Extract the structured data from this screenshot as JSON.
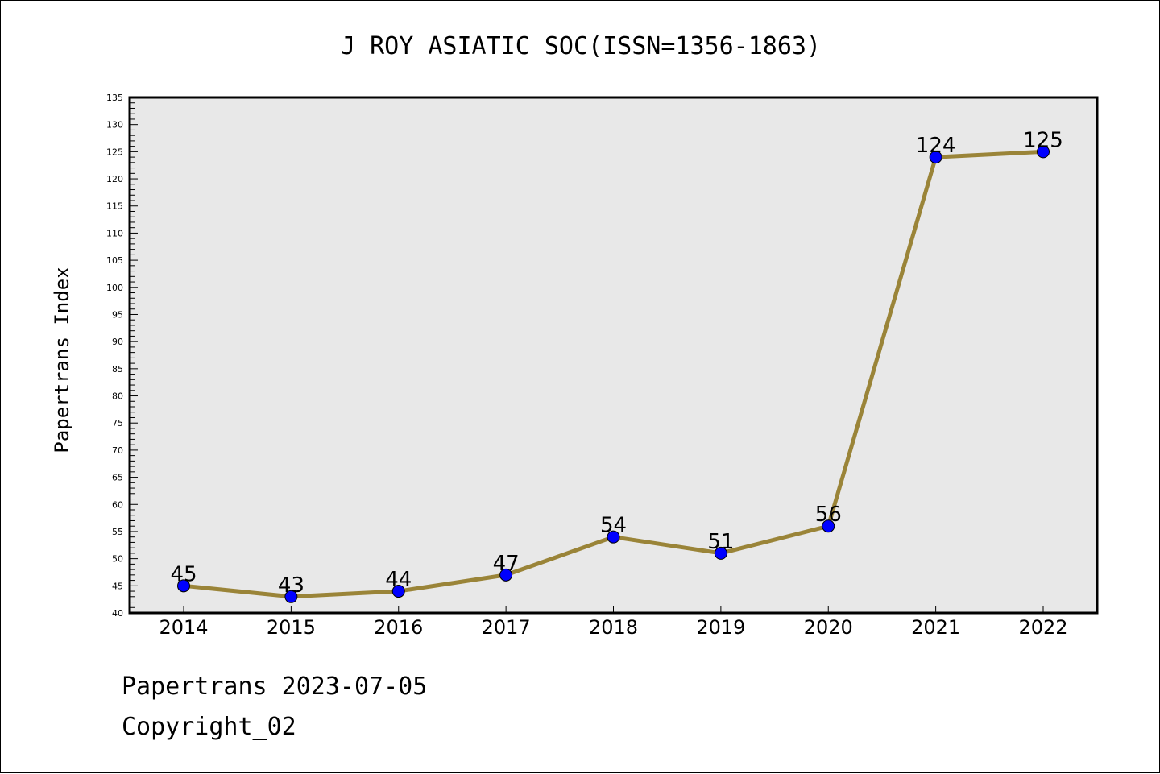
{
  "chart_data": {
    "type": "line",
    "title": "J ROY ASIATIC SOC(ISSN=1356-1863)",
    "xlabel": "",
    "ylabel": "Papertrans Index",
    "categories": [
      "2014",
      "2015",
      "2016",
      "2017",
      "2018",
      "2019",
      "2020",
      "2021",
      "2022"
    ],
    "series": [
      {
        "values": [
          45,
          43,
          44,
          47,
          54,
          51,
          56,
          124,
          125
        ]
      }
    ],
    "data_labels": [
      "45",
      "43",
      "44",
      "47",
      "54",
      "51",
      "56",
      "124",
      "125"
    ],
    "ylim": [
      40,
      135
    ],
    "yticks": [
      "40",
      "45",
      "50",
      "55",
      "60",
      "65",
      "70",
      "75",
      "80",
      "85",
      "90",
      "95",
      "100",
      "105",
      "110",
      "115",
      "120",
      "125",
      "130",
      "135"
    ],
    "y_minor_step": 1,
    "grid": false,
    "plot_background": "#e8e8e8",
    "line_color": "#9a8438",
    "marker_color": "#0000ff"
  },
  "footer": {
    "line1": "Papertrans 2023-07-05",
    "line2": "Copyright_02"
  }
}
